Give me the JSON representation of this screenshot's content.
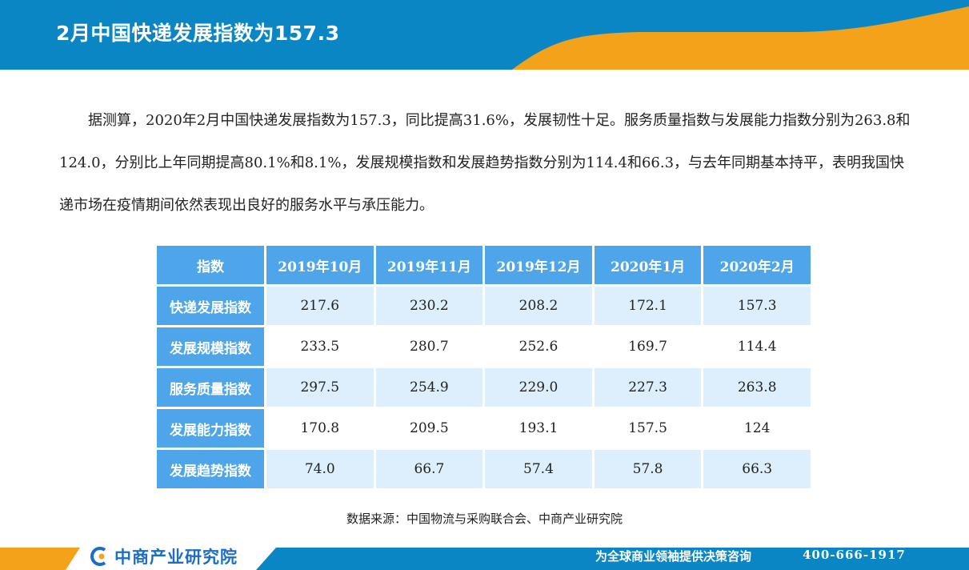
{
  "header": {
    "title": "2月中国快递发展指数为157.3",
    "colors": {
      "blue": "#0a86c4",
      "orange": "#f5a21b"
    }
  },
  "paragraph": "据测算，2020年2月中国快递发展指数为157.3，同比提高31.6%，发展韧性十足。服务质量指数与发展能力指数分别为263.8和124.0，分别比上年同期提高80.1%和8.1%，发展规模指数和发展趋势指数分别为114.4和66.3，与去年同期基本持平，表明我国快递市场在疫情期间依然表现出良好的服务水平与承压能力。",
  "table": {
    "headers": [
      "指数",
      "2019年10月",
      "2019年11月",
      "2019年12月",
      "2020年1月",
      "2020年2月"
    ],
    "rows": [
      {
        "label": "快递发展指数",
        "values": [
          "217.6",
          "230.2",
          "208.2",
          "172.1",
          "157.3"
        ]
      },
      {
        "label": "发展规模指数",
        "values": [
          "233.5",
          "280.7",
          "252.6",
          "169.7",
          "114.4"
        ]
      },
      {
        "label": "服务质量指数",
        "values": [
          "297.5",
          "254.9",
          "229.0",
          "227.3",
          "263.8"
        ]
      },
      {
        "label": "发展能力指数",
        "values": [
          "170.8",
          "209.5",
          "193.1",
          "157.5",
          "124"
        ]
      },
      {
        "label": "发展趋势指数",
        "values": [
          "74.0",
          "66.7",
          "57.4",
          "57.8",
          "66.3"
        ]
      }
    ],
    "colors": {
      "header_bg": "#4ea5ea",
      "stripe": "#ddeefc"
    }
  },
  "source": "数据来源：中国物流与采购联合会、中商产业研究院",
  "footer": {
    "logo_text": "中商产业研究院",
    "logo_icon": "zhongshang-logo-icon",
    "slogan": "为全球商业领袖提供决策咨询",
    "phone": "400-666-1917"
  }
}
